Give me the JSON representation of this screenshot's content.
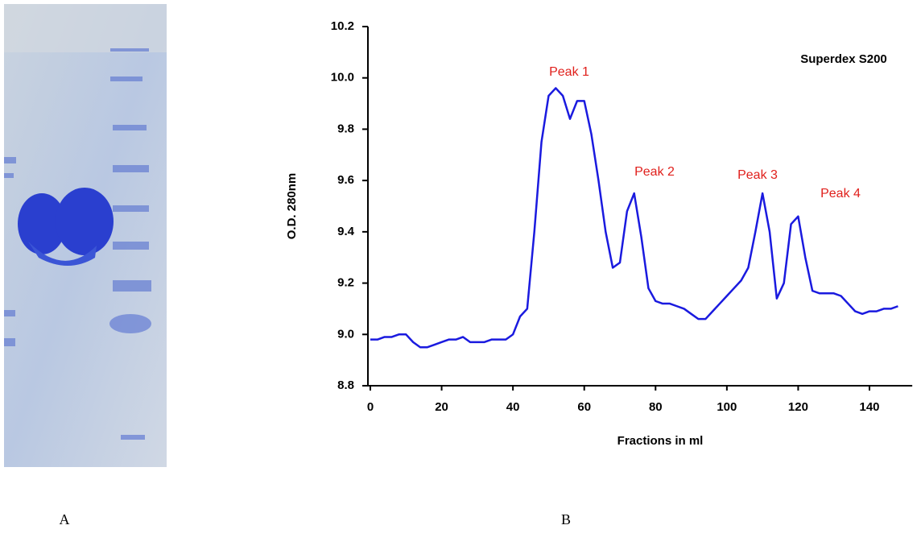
{
  "chart_data": {
    "type": "line",
    "title": "Superdex S200",
    "x_label": "Fractions in ml",
    "y_label": "O.D. 280nm",
    "annotations": [
      "Peak 1",
      "Peak 2",
      "Peak 3",
      "Peak 4"
    ],
    "color": "#1a1adf",
    "x": [
      0,
      2,
      4,
      6,
      8,
      10,
      12,
      14,
      16,
      18,
      20,
      22,
      24,
      26,
      28,
      30,
      32,
      34,
      36,
      38,
      40,
      42,
      44,
      46,
      48,
      50,
      52,
      54,
      56,
      58,
      60,
      62,
      64,
      66,
      68,
      70,
      72,
      74,
      76,
      78,
      80,
      82,
      84,
      86,
      88,
      90,
      92,
      94,
      96,
      98,
      100,
      102,
      104,
      106,
      108,
      110,
      112,
      114,
      116,
      118,
      120,
      122,
      124,
      126,
      128,
      130,
      132,
      134,
      136,
      138,
      140,
      142,
      144,
      146,
      148
    ],
    "values": [
      8.98,
      8.98,
      8.99,
      8.99,
      9.0,
      9.0,
      8.97,
      8.95,
      8.95,
      8.96,
      8.97,
      8.98,
      8.98,
      8.99,
      8.97,
      8.97,
      8.97,
      8.98,
      8.98,
      8.98,
      9.0,
      9.07,
      9.1,
      9.4,
      9.75,
      9.93,
      9.96,
      9.93,
      9.84,
      9.91,
      9.91,
      9.78,
      9.6,
      9.4,
      9.26,
      9.28,
      9.48,
      9.55,
      9.38,
      9.18,
      9.13,
      9.12,
      9.12,
      9.11,
      9.1,
      9.08,
      9.06,
      9.06,
      9.09,
      9.12,
      9.15,
      9.18,
      9.21,
      9.26,
      9.4,
      9.55,
      9.4,
      9.14,
      9.2,
      9.43,
      9.46,
      9.3,
      9.17,
      9.16,
      9.16,
      9.16,
      9.15,
      9.12,
      9.09,
      9.08,
      9.09,
      9.09,
      9.1,
      9.1,
      9.11
    ],
    "xlim": [
      0,
      152
    ],
    "xticks": [
      0,
      20,
      40,
      60,
      80,
      100,
      120,
      140
    ],
    "ylim": [
      8.8,
      10.2
    ],
    "yticks": [
      8.8,
      {
        "value": 9,
        "label": "9.0"
      },
      9.2,
      9.4,
      9.6,
      9.8,
      {
        "value": 10,
        "label": "10.0"
      },
      10.2
    ],
    "grid": false
  },
  "panel_labels": [
    "A",
    "B"
  ]
}
